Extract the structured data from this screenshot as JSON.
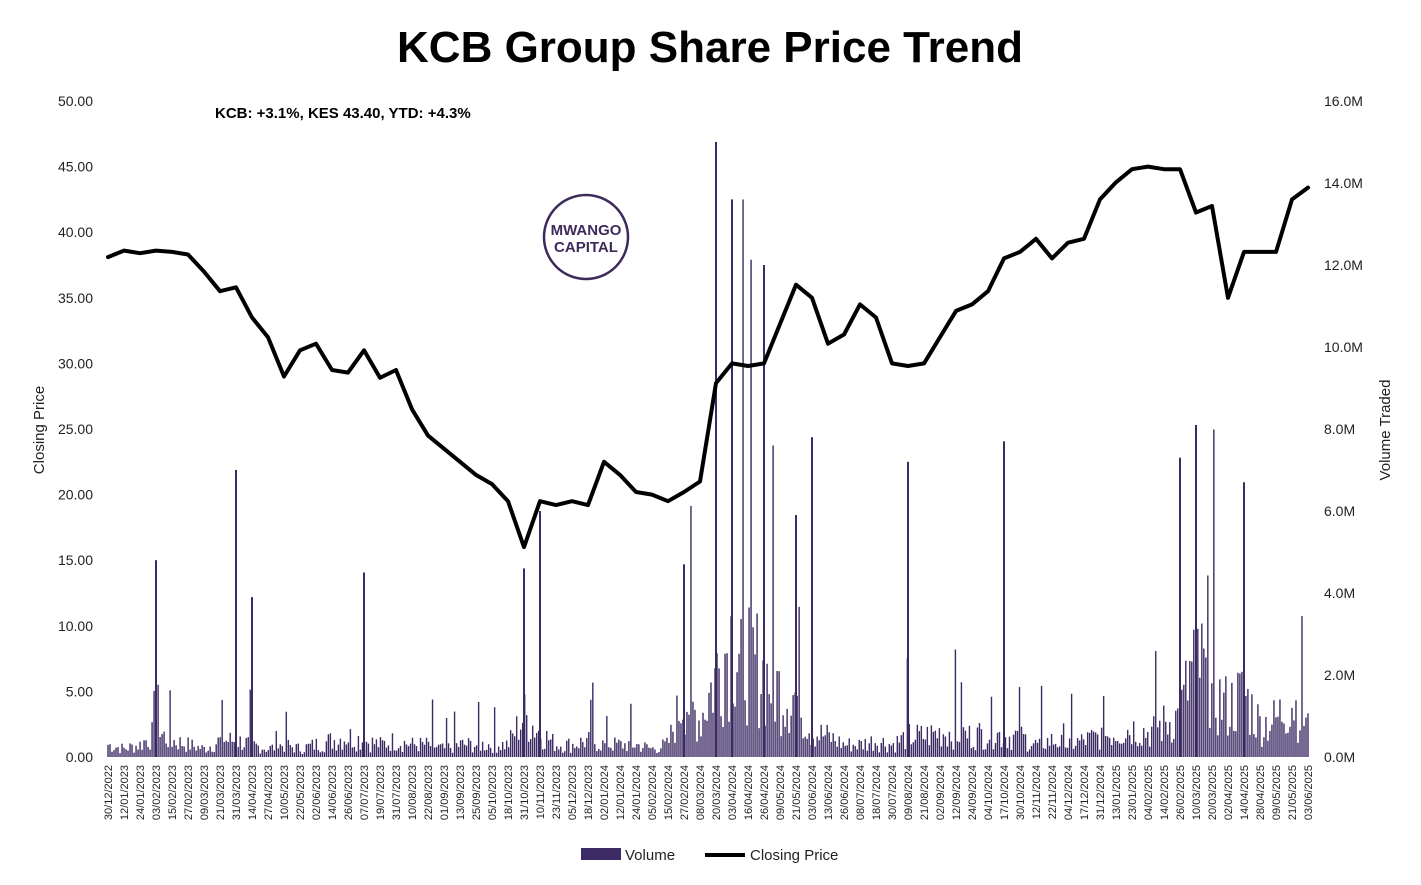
{
  "colors": {
    "volume": "#3b2a63",
    "price": "#000000",
    "logo": "#3d2a5a"
  },
  "logo": {
    "line1": "MWANGO",
    "line2": "CAPITAL"
  },
  "chart_data": {
    "type": "bar+line",
    "title": "KCB Group Share Price Trend",
    "annotation": "KCB: +3.1%, KES 43.40, YTD: +4.3%",
    "ylabel_left": "Closing Price",
    "ylabel_right": "Volume Traded",
    "ylim_left": [
      0,
      50
    ],
    "ylim_right": [
      0,
      16000000
    ],
    "yticks_left": [
      "0.00",
      "5.00",
      "10.00",
      "15.00",
      "20.00",
      "25.00",
      "30.00",
      "35.00",
      "40.00",
      "45.00",
      "50.00"
    ],
    "yticks_right": [
      "0.0M",
      "2.0M",
      "4.0M",
      "6.0M",
      "8.0M",
      "10.0M",
      "12.0M",
      "14.0M",
      "16.0M"
    ],
    "x_ticks": [
      "30/12/2022",
      "12/01/2023",
      "24/01/2023",
      "03/02/2023",
      "15/02/2023",
      "27/02/2023",
      "09/03/2023",
      "21/03/2023",
      "31/03/2023",
      "14/04/2023",
      "27/04/2023",
      "10/05/2023",
      "22/05/2023",
      "02/06/2023",
      "14/06/2023",
      "26/06/2023",
      "07/07/2023",
      "19/07/2023",
      "31/07/2023",
      "10/08/2023",
      "22/08/2023",
      "01/09/2023",
      "13/09/2023",
      "25/09/2023",
      "05/10/2023",
      "18/10/2023",
      "31/10/2023",
      "10/11/2023",
      "23/11/2023",
      "05/12/2023",
      "18/12/2023",
      "02/01/2024",
      "12/01/2024",
      "24/01/2024",
      "05/02/2024",
      "15/02/2024",
      "27/02/2024",
      "08/03/2024",
      "20/03/2024",
      "03/04/2024",
      "16/04/2024",
      "26/04/2024",
      "09/05/2024",
      "21/05/2024",
      "03/06/2024",
      "13/06/2024",
      "26/06/2024",
      "08/07/2024",
      "18/07/2024",
      "30/07/2024",
      "09/08/2024",
      "21/08/2024",
      "02/09/2024",
      "12/09/2024",
      "24/09/2024",
      "04/10/2024",
      "17/10/2024",
      "30/10/2024",
      "12/11/2024",
      "22/11/2024",
      "04/12/2024",
      "17/12/2024",
      "31/12/2024",
      "13/01/2025",
      "23/01/2025",
      "04/02/2025",
      "14/02/2025",
      "26/02/2025",
      "10/03/2025",
      "20/03/2025",
      "02/04/2025",
      "14/04/2025",
      "28/04/2025",
      "09/05/2025",
      "21/05/2025",
      "03/06/2025"
    ],
    "series": [
      {
        "name": "Volume",
        "type": "bar",
        "axis": "right",
        "unit": "shares"
      },
      {
        "name": "Closing Price",
        "type": "line",
        "axis": "left",
        "unit": "KES"
      }
    ],
    "price_by_tick": [
      38.1,
      38.6,
      38.4,
      38.6,
      38.5,
      38.3,
      37.0,
      35.5,
      35.8,
      33.5,
      32.0,
      29.0,
      31.0,
      31.5,
      29.5,
      29.3,
      31.0,
      28.9,
      29.5,
      26.5,
      24.5,
      23.5,
      22.5,
      21.5,
      20.8,
      19.5,
      16.0,
      19.5,
      19.2,
      19.5,
      19.2,
      22.5,
      21.5,
      20.2,
      20.0,
      19.5,
      20.2,
      21.0,
      28.5,
      30.0,
      29.8,
      30.0,
      33.0,
      36.0,
      35.0,
      31.5,
      32.2,
      34.5,
      33.5,
      30.0,
      29.8,
      30.0,
      32.0,
      34.0,
      34.5,
      35.5,
      38.0,
      38.5,
      39.5,
      38.0,
      39.2,
      39.5,
      42.5,
      43.8,
      44.8,
      45.0,
      44.8,
      44.8,
      41.5,
      42.0,
      35.0,
      38.5,
      38.5,
      38.5,
      42.5,
      43.4
    ],
    "volume_by_tick": [
      0.3,
      0.2,
      0.3,
      0.6,
      0.4,
      0.3,
      0.2,
      0.4,
      0.4,
      0.3,
      0.2,
      0.3,
      0.2,
      0.3,
      0.4,
      0.5,
      0.4,
      0.3,
      0.4,
      0.3,
      0.3,
      0.2,
      0.3,
      0.3,
      0.3,
      0.3,
      1.0,
      0.6,
      0.3,
      0.3,
      0.4,
      0.3,
      0.3,
      0.3,
      0.2,
      0.3,
      1.5,
      0.9,
      2.0,
      3.0,
      2.5,
      2.0,
      1.6,
      1.5,
      0.6,
      0.5,
      0.3,
      0.3,
      0.4,
      0.3,
      0.5,
      0.5,
      0.6,
      0.6,
      0.5,
      0.6,
      0.5,
      0.5,
      0.3,
      0.4,
      0.3,
      0.4,
      0.5,
      0.6,
      0.7,
      0.6,
      0.8,
      1.0,
      2.5,
      1.5,
      1.2,
      1.5,
      0.8,
      0.9,
      1.4,
      0.7
    ],
    "volume_spikes": [
      {
        "x": "03/02/2023",
        "value": 4.8
      },
      {
        "x": "31/03/2023",
        "value": 7.0
      },
      {
        "x": "14/04/2023",
        "value": 3.9
      },
      {
        "x": "07/07/2023",
        "value": 4.5
      },
      {
        "x": "31/10/2023",
        "value": 4.6
      },
      {
        "x": "10/11/2023",
        "value": 6.0
      },
      {
        "x": "27/02/2024",
        "value": 4.7
      },
      {
        "x": "20/03/2024",
        "value": 15.0
      },
      {
        "x": "03/04/2024",
        "value": 13.6
      },
      {
        "x": "26/04/2024",
        "value": 12.0
      },
      {
        "x": "21/05/2024",
        "value": 5.9
      },
      {
        "x": "03/06/2024",
        "value": 7.8
      },
      {
        "x": "09/08/2024",
        "value": 7.2
      },
      {
        "x": "17/10/2024",
        "value": 7.7
      },
      {
        "x": "26/02/2025",
        "value": 7.3
      },
      {
        "x": "10/03/2025",
        "value": 8.1
      },
      {
        "x": "14/04/2025",
        "value": 6.7
      }
    ]
  },
  "legend": {
    "volume": "Volume",
    "price": "Closing Price"
  }
}
